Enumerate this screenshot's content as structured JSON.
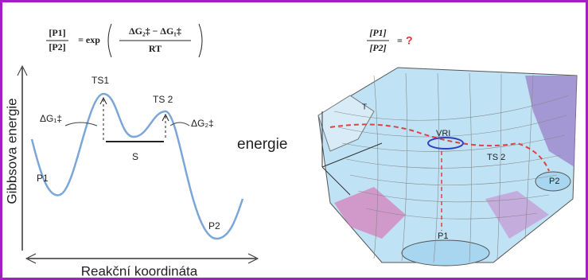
{
  "left_panel": {
    "formula": {
      "lhs_numerator": "[P1]",
      "lhs_denominator": "[P2]",
      "operator": "= exp",
      "rhs_numerator": "ΔG₂‡ − ΔG₁‡",
      "rhs_denominator": "RT"
    },
    "y_axis_label": "Gibbsova energie",
    "x_axis_label": "Reakční koordináta",
    "labels": {
      "ts1": "TS1",
      "ts2": "TS 2",
      "dg1": "ΔG₁‡",
      "dg2": "ΔG₂‡",
      "s": "S",
      "p1": "P1",
      "p2": "P2"
    }
  },
  "middle_label": "energie",
  "right_panel": {
    "formula": {
      "numerator": "[P1]",
      "denominator": "[P2]",
      "equals": "=",
      "unknown": "?"
    },
    "labels": {
      "ts1": "T",
      "vri": "VRI",
      "ts2": "TS 2",
      "p1": "P1",
      "p2": "P2"
    }
  }
}
